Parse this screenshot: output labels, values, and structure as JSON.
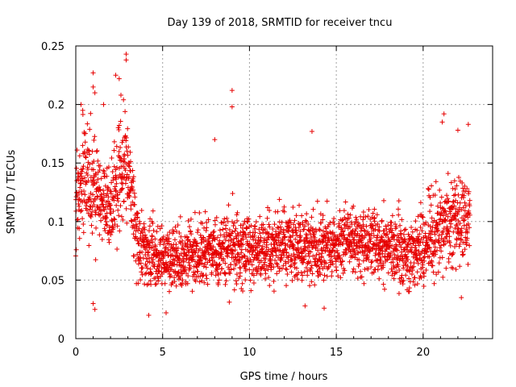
{
  "chart_data": {
    "type": "scatter",
    "title": "Day 139 of 2018, SRMTID for receiver tncu",
    "xlabel": "GPS time / hours",
    "ylabel": "SRMTID / TECUs",
    "xlim": [
      0,
      24
    ],
    "ylim": [
      0,
      0.25
    ],
    "xticks": [
      0,
      5,
      10,
      15,
      20
    ],
    "xtick_labels": [
      "0",
      "5",
      "10",
      "15",
      "20"
    ],
    "yticks": [
      0,
      0.05,
      0.1,
      0.15,
      0.2,
      0.25
    ],
    "ytick_labels": [
      "0",
      "0.05",
      "0.1",
      "0.15",
      "0.2",
      "0.25"
    ],
    "grid": true,
    "legend": "none",
    "marker": "plus",
    "series_color": "#e60000",
    "trend": {
      "x": [
        0,
        0.5,
        1,
        1.5,
        2,
        2.5,
        3,
        3.5,
        4,
        5,
        6,
        7,
        8,
        9,
        10,
        11,
        12,
        13,
        14,
        15,
        16,
        17,
        18,
        19,
        20,
        21,
        22,
        22.7
      ],
      "y": [
        0.11,
        0.14,
        0.13,
        0.12,
        0.11,
        0.14,
        0.15,
        0.09,
        0.075,
        0.07,
        0.07,
        0.07,
        0.075,
        0.08,
        0.075,
        0.075,
        0.08,
        0.08,
        0.08,
        0.08,
        0.085,
        0.08,
        0.08,
        0.075,
        0.08,
        0.1,
        0.1,
        0.1
      ],
      "spread": [
        0.035,
        0.045,
        0.04,
        0.035,
        0.035,
        0.045,
        0.045,
        0.03,
        0.025,
        0.025,
        0.025,
        0.025,
        0.025,
        0.03,
        0.025,
        0.025,
        0.025,
        0.025,
        0.025,
        0.025,
        0.025,
        0.025,
        0.025,
        0.025,
        0.03,
        0.035,
        0.035,
        0.035
      ]
    },
    "highlights": [
      {
        "x": 0.3,
        "y": 0.2
      },
      {
        "x": 0.4,
        "y": 0.195
      },
      {
        "x": 1.0,
        "y": 0.227
      },
      {
        "x": 1.0,
        "y": 0.215
      },
      {
        "x": 1.1,
        "y": 0.21
      },
      {
        "x": 1.6,
        "y": 0.2
      },
      {
        "x": 2.3,
        "y": 0.225
      },
      {
        "x": 2.5,
        "y": 0.222
      },
      {
        "x": 2.6,
        "y": 0.208
      },
      {
        "x": 2.9,
        "y": 0.243
      },
      {
        "x": 2.9,
        "y": 0.238
      },
      {
        "x": 9.0,
        "y": 0.212
      },
      {
        "x": 9.0,
        "y": 0.198
      },
      {
        "x": 8.0,
        "y": 0.17
      },
      {
        "x": 13.6,
        "y": 0.177
      },
      {
        "x": 21.2,
        "y": 0.192
      },
      {
        "x": 21.1,
        "y": 0.185
      },
      {
        "x": 22.6,
        "y": 0.183
      },
      {
        "x": 22.0,
        "y": 0.178
      },
      {
        "x": 1.0,
        "y": 0.03
      },
      {
        "x": 1.1,
        "y": 0.025
      },
      {
        "x": 4.2,
        "y": 0.02
      },
      {
        "x": 5.2,
        "y": 0.022
      },
      {
        "x": 13.2,
        "y": 0.028
      },
      {
        "x": 14.3,
        "y": 0.026
      },
      {
        "x": 22.2,
        "y": 0.035
      }
    ],
    "point_count": 2600
  }
}
